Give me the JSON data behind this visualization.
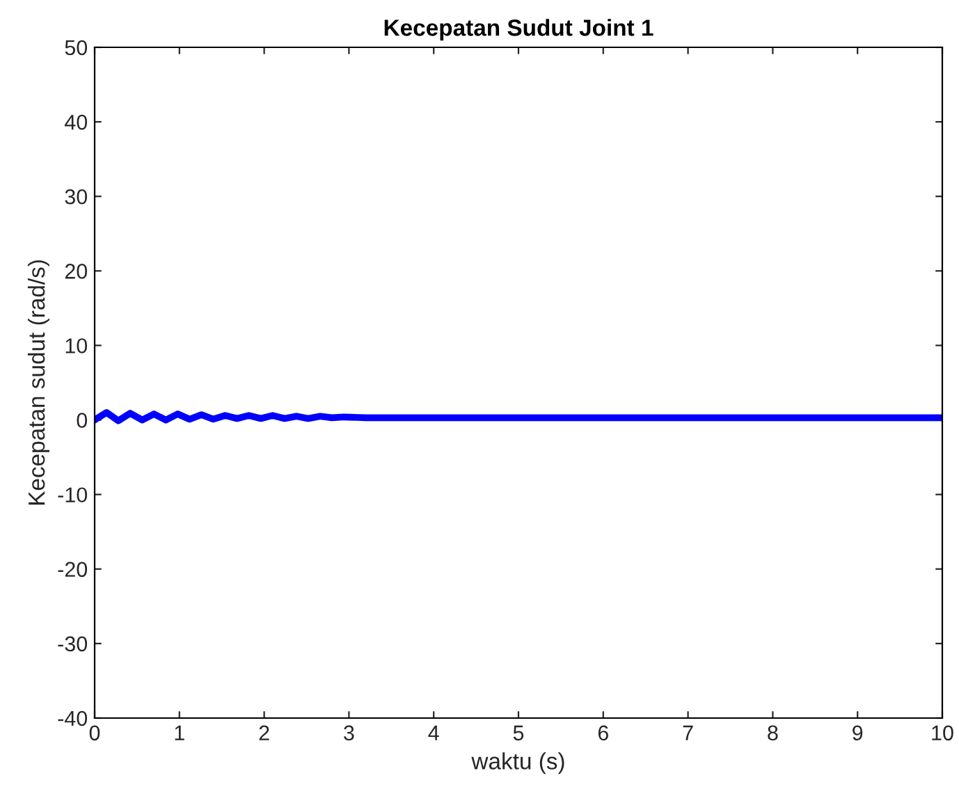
{
  "chart_data": {
    "type": "line",
    "title": "Kecepatan Sudut Joint 1",
    "xlabel": "waktu (s)",
    "ylabel": "Kecepatan sudut (rad/s)",
    "xlim": [
      0,
      10
    ],
    "ylim": [
      -40,
      50
    ],
    "xticks": [
      0,
      1,
      2,
      3,
      4,
      5,
      6,
      7,
      8,
      9,
      10
    ],
    "yticks": [
      -40,
      -30,
      -20,
      -10,
      0,
      10,
      20,
      30,
      40,
      50
    ],
    "marker": "none",
    "line_style": "solid",
    "series": [
      {
        "color": "#0000ff",
        "x": [
          0,
          0.14,
          0.28,
          0.42,
          0.56,
          0.7,
          0.84,
          0.98,
          1.12,
          1.26,
          1.4,
          1.54,
          1.68,
          1.82,
          1.96,
          2.1,
          2.24,
          2.38,
          2.52,
          2.66,
          2.8,
          2.94,
          3.2,
          4,
          5,
          6,
          7,
          8,
          9,
          10
        ],
        "values": [
          0,
          1.0,
          -0.1,
          0.9,
          0.0,
          0.8,
          0.0,
          0.8,
          0.1,
          0.7,
          0.1,
          0.6,
          0.2,
          0.6,
          0.2,
          0.6,
          0.2,
          0.5,
          0.2,
          0.5,
          0.3,
          0.4,
          0.3,
          0.3,
          0.3,
          0.3,
          0.3,
          0.3,
          0.3,
          0.3
        ]
      }
    ]
  }
}
